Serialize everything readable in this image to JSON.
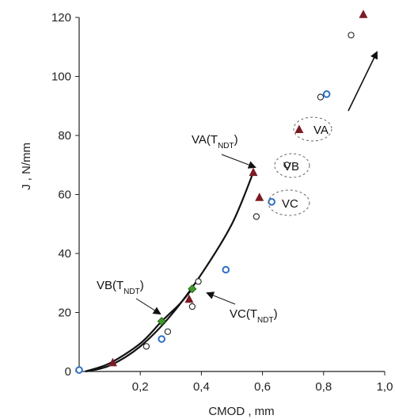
{
  "chart_data": {
    "type": "scatter",
    "xlabel": "CMOD , mm",
    "ylabel": "J , N/mm",
    "xlim": [
      0,
      1.0
    ],
    "ylim": [
      0,
      120
    ],
    "xticks": [
      {
        "value": 0.2,
        "label": "0,2"
      },
      {
        "value": 0.4,
        "label": "0,4"
      },
      {
        "value": 0.6,
        "label": "0,6"
      },
      {
        "value": 0.8,
        "label": "0,8"
      },
      {
        "value": 1.0,
        "label": "1,0"
      }
    ],
    "yticks": [
      {
        "value": 0,
        "label": "0"
      },
      {
        "value": 20,
        "label": "20"
      },
      {
        "value": 40,
        "label": "40"
      },
      {
        "value": 60,
        "label": "60"
      },
      {
        "value": 80,
        "label": "80"
      },
      {
        "value": 100,
        "label": "100"
      },
      {
        "value": 120,
        "label": "120"
      }
    ],
    "grid": false,
    "legend": "none",
    "colors": {
      "VA": "#7b1a22",
      "VB": "#222222",
      "VC": "#2f6fc4",
      "green": "#3f9a2a",
      "curve": "#111111"
    },
    "series": [
      {
        "marker": "triangle",
        "points": [
          [
            0.11,
            3
          ],
          [
            0.36,
            24.5
          ],
          [
            0.57,
            67.5
          ],
          [
            0.59,
            59
          ],
          [
            0.72,
            82
          ],
          [
            0.93,
            121
          ]
        ]
      },
      {
        "marker": "open-circle",
        "points": [
          [
            0.0,
            0.5
          ],
          [
            0.22,
            8.5
          ],
          [
            0.29,
            13.5
          ],
          [
            0.37,
            22
          ],
          [
            0.39,
            30.5
          ],
          [
            0.58,
            52.5
          ],
          [
            0.68,
            70
          ],
          [
            0.79,
            93
          ],
          [
            0.89,
            114
          ]
        ]
      },
      {
        "marker": "blue-diamond",
        "points": [
          [
            0.0,
            0.5
          ],
          [
            0.27,
            11
          ],
          [
            0.48,
            34.5
          ],
          [
            0.63,
            57.5
          ],
          [
            0.81,
            94
          ]
        ]
      },
      {
        "marker": "green-diamond",
        "points": [
          [
            0.27,
            17
          ],
          [
            0.37,
            28
          ]
        ]
      }
    ],
    "curves": [
      {
        "points": [
          [
            0.02,
            0
          ],
          [
            0.1,
            2
          ],
          [
            0.2,
            8.5
          ],
          [
            0.3,
            19
          ],
          [
            0.4,
            33
          ],
          [
            0.5,
            50
          ],
          [
            0.57,
            67.5
          ]
        ]
      },
      {
        "points": [
          [
            0.02,
            0
          ],
          [
            0.1,
            2.8
          ],
          [
            0.2,
            9.5
          ],
          [
            0.27,
            17
          ],
          [
            0.33,
            23
          ],
          [
            0.37,
            28
          ]
        ]
      }
    ],
    "annotations": [
      {
        "id": "va-tndt",
        "main": "VA(T",
        "sub": "NDT",
        "close": ")"
      },
      {
        "id": "vb-tndt",
        "main": "VB(T",
        "sub": "NDT",
        "close": ")"
      },
      {
        "id": "vc-tndt",
        "main": "VC(T",
        "sub": "NDT",
        "close": ")"
      },
      {
        "id": "label-va",
        "main": "VA",
        "sub": "",
        "close": ""
      },
      {
        "id": "label-vb",
        "main": "VB",
        "sub": "",
        "close": ""
      },
      {
        "id": "label-vc",
        "main": "VC",
        "sub": "",
        "close": ""
      }
    ]
  }
}
